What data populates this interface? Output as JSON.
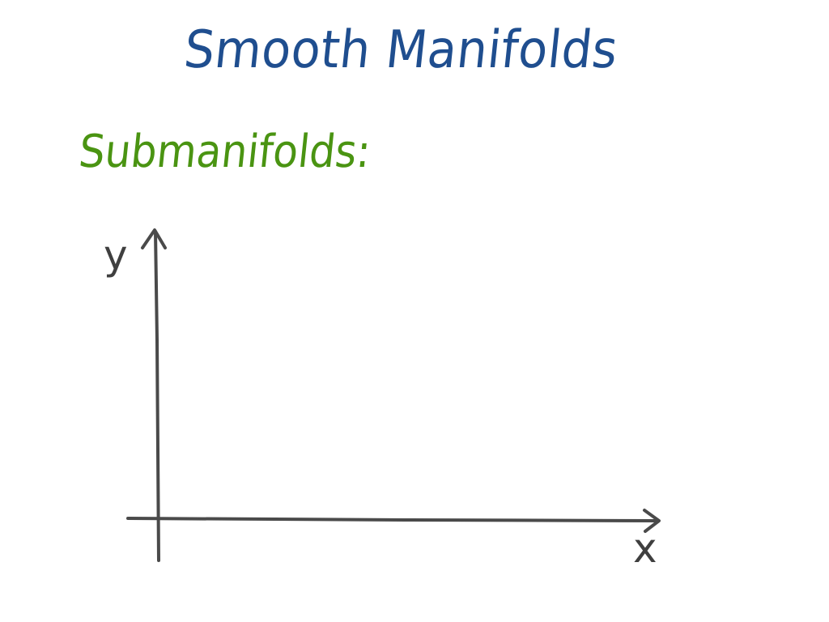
{
  "title": "Smooth Manifolds",
  "subtitle": "Submanifolds:",
  "axes": {
    "x_label": "x",
    "y_label": "y"
  },
  "colors": {
    "title": "#1f4e8f",
    "subtitle": "#4a9412",
    "axes": "#4a4a4a",
    "background": "#ffffff"
  }
}
